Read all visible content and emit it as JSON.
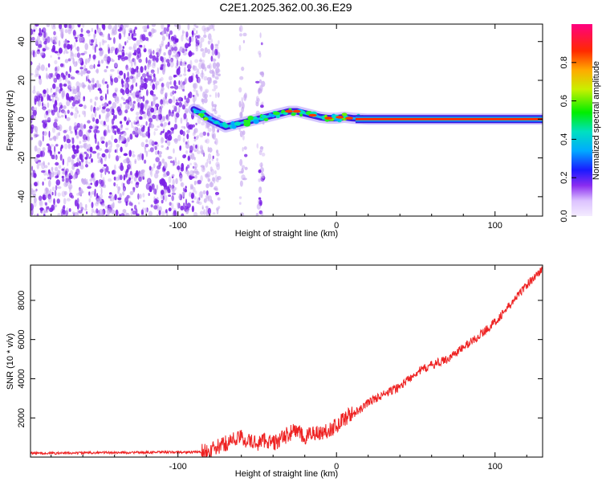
{
  "title": "C2E1.2025.362.00.36.E29",
  "colors": {
    "noise": "#7a1fe6",
    "noise_light": "#c7a8f0",
    "snr_line": "#ee2222",
    "frame": "#000000"
  },
  "chart_data": [
    {
      "type": "heatmap",
      "name": "spectrogram",
      "title": "C2E1.2025.362.00.36.E29",
      "xlabel": "Height of straight line (km)",
      "ylabel": "Frequency (Hz)",
      "xlim": [
        -193,
        130
      ],
      "ylim": [
        -50,
        49
      ],
      "xticks": [
        -100,
        0,
        100
      ],
      "yticks": [
        -40,
        -20,
        0,
        20,
        40
      ],
      "grid": false,
      "signal_trace": [
        {
          "x": -90,
          "y": 5
        },
        {
          "x": -85,
          "y": 3
        },
        {
          "x": -80,
          "y": 0
        },
        {
          "x": -75,
          "y": -2
        },
        {
          "x": -70,
          "y": -4
        },
        {
          "x": -65,
          "y": -3
        },
        {
          "x": -60,
          "y": -2
        },
        {
          "x": -55,
          "y": -1
        },
        {
          "x": -50,
          "y": 0
        },
        {
          "x": -45,
          "y": 1
        },
        {
          "x": -40,
          "y": 2
        },
        {
          "x": -35,
          "y": 3
        },
        {
          "x": -30,
          "y": 4
        },
        {
          "x": -25,
          "y": 4
        },
        {
          "x": -20,
          "y": 3
        },
        {
          "x": -15,
          "y": 2
        },
        {
          "x": -10,
          "y": 1
        },
        {
          "x": -5,
          "y": 0.5
        },
        {
          "x": 0,
          "y": 0.5
        },
        {
          "x": 5,
          "y": 1
        },
        {
          "x": 10,
          "y": 0.5
        },
        {
          "x": 20,
          "y": 0
        },
        {
          "x": 60,
          "y": 0
        },
        {
          "x": 100,
          "y": 0
        },
        {
          "x": 130,
          "y": 0
        }
      ],
      "colorbar": {
        "label": "Normalized spectral amplitude",
        "range": [
          0,
          1
        ],
        "ticks": [
          0.0,
          0.2,
          0.4,
          0.6,
          0.8
        ]
      }
    },
    {
      "type": "line",
      "name": "snr",
      "xlabel": "Height of straight line (km)",
      "ylabel": "SNR (10 * v/v)",
      "xlim": [
        -193,
        130
      ],
      "ylim": [
        0,
        9800
      ],
      "xticks": [
        -100,
        0,
        100
      ],
      "yticks": [
        2000,
        4000,
        6000,
        8000
      ],
      "grid": false,
      "series": [
        {
          "name": "SNR",
          "x": [
            -193,
            -170,
            -150,
            -130,
            -110,
            -90,
            -80,
            -75,
            -70,
            -65,
            -60,
            -55,
            -50,
            -45,
            -40,
            -35,
            -30,
            -25,
            -20,
            -15,
            -10,
            -5,
            0,
            5,
            10,
            15,
            20,
            30,
            40,
            50,
            60,
            70,
            80,
            90,
            100,
            110,
            120,
            130
          ],
          "values": [
            200,
            200,
            230,
            230,
            250,
            250,
            300,
            500,
            700,
            900,
            1000,
            800,
            700,
            900,
            700,
            900,
            1200,
            1400,
            900,
            1300,
            1200,
            1400,
            1600,
            2000,
            2200,
            2400,
            2800,
            3200,
            3600,
            4300,
            4700,
            5000,
            5600,
            6200,
            6900,
            7800,
            8800,
            9600
          ]
        }
      ]
    }
  ]
}
